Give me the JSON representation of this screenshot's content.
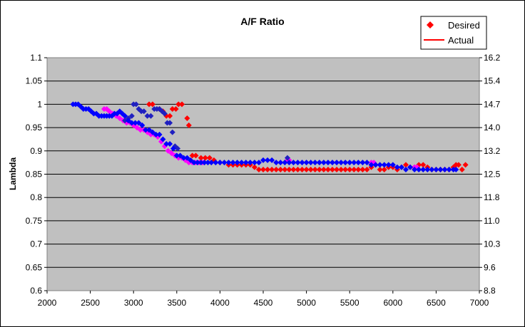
{
  "chart_data": {
    "type": "scatter",
    "title": "A/F Ratio",
    "xlabel": "",
    "ylabel": "Lambda",
    "xlim": [
      2000,
      7000
    ],
    "ylim": [
      0.6,
      1.1
    ],
    "x_ticks": [
      "2000",
      "2500",
      "3000",
      "3500",
      "4000",
      "4500",
      "5000",
      "5500",
      "6000",
      "6500",
      "7000"
    ],
    "y_ticks": [
      "0.6",
      "0.65",
      "0.7",
      "0.75",
      "0.8",
      "0.85",
      "0.9",
      "0.95",
      "1",
      "1.05",
      "1.1"
    ],
    "y2_ticks": [
      "8.8",
      "9.6",
      "10.3",
      "11.0",
      "11.8",
      "12.5",
      "13.2",
      "14.0",
      "14.7",
      "15.4",
      "16.2"
    ],
    "grid": true,
    "legend_position": "top-right",
    "legend": [
      {
        "label": "Desired",
        "marker": "diamond",
        "color": "#ff0000"
      },
      {
        "label": "Actual",
        "marker": "line",
        "color": "#ff0000"
      }
    ],
    "series": [
      {
        "name": "Desired",
        "color": "#ff0000",
        "x": [
          3180,
          3220,
          3300,
          3340,
          3380,
          3420,
          3450,
          3490,
          3520,
          3560,
          3620,
          3640,
          3680,
          3720,
          3780,
          3830,
          3880,
          3930,
          4000,
          4100,
          4150,
          4200,
          4250,
          4300,
          4350,
          4400,
          4450,
          4500,
          4550,
          4600,
          4650,
          4700,
          4750,
          4800,
          4850,
          4900,
          4950,
          5000,
          5050,
          5100,
          5150,
          5200,
          5250,
          5300,
          5350,
          5400,
          5450,
          5500,
          5550,
          5600,
          5650,
          5700,
          5750,
          5800,
          5850,
          5900,
          5950,
          6000,
          6050,
          6100,
          6150,
          6200,
          6250,
          6300,
          6350,
          6400,
          6450,
          6500,
          6550,
          6600,
          6650,
          6700,
          6730,
          6760,
          6800,
          6840
        ],
        "y": [
          1.0,
          1.0,
          0.99,
          0.985,
          0.975,
          0.975,
          0.99,
          0.99,
          1.0,
          1.0,
          0.97,
          0.955,
          0.89,
          0.89,
          0.885,
          0.885,
          0.885,
          0.88,
          0.875,
          0.87,
          0.87,
          0.87,
          0.87,
          0.87,
          0.87,
          0.865,
          0.86,
          0.86,
          0.86,
          0.86,
          0.86,
          0.86,
          0.86,
          0.86,
          0.86,
          0.86,
          0.86,
          0.86,
          0.86,
          0.86,
          0.86,
          0.86,
          0.86,
          0.86,
          0.86,
          0.86,
          0.86,
          0.86,
          0.86,
          0.86,
          0.86,
          0.86,
          0.865,
          0.87,
          0.86,
          0.86,
          0.865,
          0.865,
          0.86,
          0.865,
          0.87,
          0.865,
          0.865,
          0.87,
          0.87,
          0.865,
          0.86,
          0.86,
          0.86,
          0.86,
          0.86,
          0.865,
          0.87,
          0.87,
          0.86,
          0.87
        ]
      },
      {
        "name": "",
        "color": "#ff00ff",
        "x": [
          2660,
          2690,
          2720,
          2760,
          2800,
          2840,
          2880,
          2920,
          2960,
          3000,
          3040,
          3080,
          3120,
          3160,
          3200,
          3240,
          3280,
          3320,
          3360,
          3400,
          3440,
          3480,
          3520,
          3560,
          3600,
          3640,
          3680,
          3720,
          3760,
          3800,
          4780,
          4800,
          5750,
          5780,
          6250,
          6280
        ],
        "y": [
          0.99,
          0.99,
          0.985,
          0.98,
          0.975,
          0.97,
          0.965,
          0.96,
          0.96,
          0.955,
          0.95,
          0.945,
          0.945,
          0.94,
          0.935,
          0.935,
          0.93,
          0.92,
          0.91,
          0.9,
          0.895,
          0.89,
          0.885,
          0.885,
          0.88,
          0.875,
          0.875,
          0.875,
          0.875,
          0.875,
          0.88,
          0.88,
          0.875,
          0.875,
          0.865,
          0.865
        ]
      },
      {
        "name": "",
        "color": "#2020c0",
        "x": [
          2900,
          2940,
          2980,
          3000,
          3030,
          3060,
          3090,
          3120,
          3160,
          3200,
          3240,
          3270,
          3300,
          3330,
          3360,
          3390,
          3420,
          3450,
          3480,
          3510,
          4780
        ],
        "y": [
          0.965,
          0.97,
          0.975,
          1.0,
          1.0,
          0.99,
          0.985,
          0.985,
          0.975,
          0.975,
          0.99,
          0.99,
          0.99,
          0.985,
          0.98,
          0.96,
          0.96,
          0.94,
          0.91,
          0.905,
          0.885
        ]
      },
      {
        "name": "",
        "color": "#0000ff",
        "x": [
          2300,
          2330,
          2360,
          2390,
          2420,
          2450,
          2480,
          2510,
          2540,
          2570,
          2600,
          2630,
          2660,
          2690,
          2720,
          2750,
          2780,
          2810,
          2840,
          2870,
          2900,
          2940,
          2980,
          3020,
          3060,
          3100,
          3140,
          3180,
          3220,
          3260,
          3300,
          3340,
          3380,
          3420,
          3460,
          3500,
          3540,
          3580,
          3620,
          3660,
          3700,
          3740,
          3780,
          3820,
          3860,
          3900,
          3950,
          4000,
          4050,
          4100,
          4150,
          4200,
          4250,
          4300,
          4350,
          4400,
          4450,
          4500,
          4550,
          4600,
          4650,
          4700,
          4750,
          4800,
          4850,
          4900,
          4950,
          5000,
          5050,
          5100,
          5150,
          5200,
          5250,
          5300,
          5350,
          5400,
          5450,
          5500,
          5550,
          5600,
          5650,
          5700,
          5750,
          5800,
          5850,
          5900,
          5950,
          6000,
          6050,
          6100,
          6150,
          6200,
          6250,
          6300,
          6350,
          6400,
          6450,
          6500,
          6550,
          6600,
          6650,
          6700,
          6730
        ],
        "y": [
          1.0,
          1.0,
          1.0,
          0.995,
          0.99,
          0.99,
          0.99,
          0.985,
          0.98,
          0.98,
          0.975,
          0.975,
          0.975,
          0.975,
          0.975,
          0.975,
          0.98,
          0.98,
          0.985,
          0.98,
          0.975,
          0.965,
          0.96,
          0.96,
          0.96,
          0.955,
          0.945,
          0.945,
          0.94,
          0.935,
          0.935,
          0.925,
          0.915,
          0.915,
          0.905,
          0.89,
          0.89,
          0.885,
          0.885,
          0.88,
          0.875,
          0.875,
          0.875,
          0.875,
          0.875,
          0.875,
          0.875,
          0.875,
          0.875,
          0.875,
          0.875,
          0.875,
          0.875,
          0.875,
          0.875,
          0.875,
          0.875,
          0.88,
          0.88,
          0.88,
          0.875,
          0.875,
          0.875,
          0.875,
          0.875,
          0.875,
          0.875,
          0.875,
          0.875,
          0.875,
          0.875,
          0.875,
          0.875,
          0.875,
          0.875,
          0.875,
          0.875,
          0.875,
          0.875,
          0.875,
          0.875,
          0.875,
          0.87,
          0.87,
          0.87,
          0.87,
          0.87,
          0.87,
          0.865,
          0.865,
          0.86,
          0.865,
          0.86,
          0.86,
          0.86,
          0.86,
          0.86,
          0.86,
          0.86,
          0.86,
          0.86,
          0.86,
          0.86
        ]
      }
    ]
  },
  "colors": {
    "plot_background": "#c0c0c0",
    "gridline": "#000000"
  }
}
